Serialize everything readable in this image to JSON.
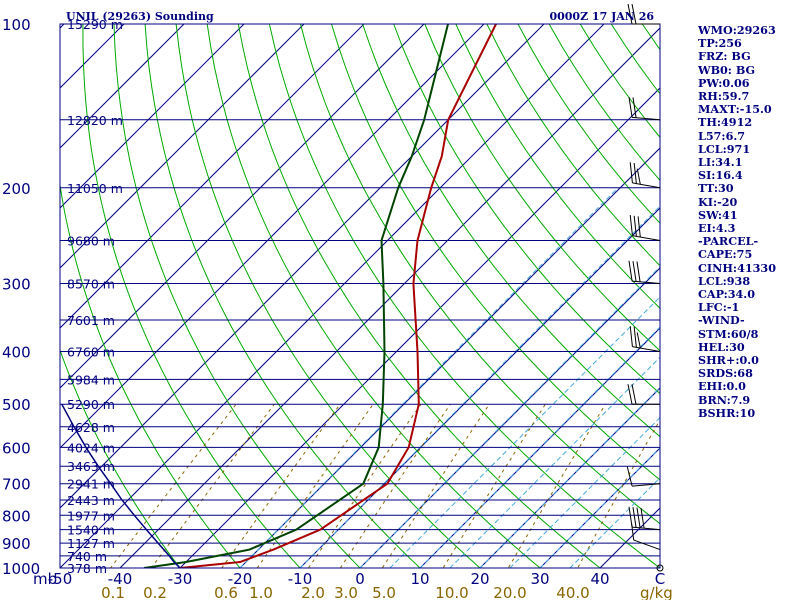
{
  "header": {
    "left_title": "UNIL (29263) Sounding",
    "right_title": "0000Z 17 JAN 26"
  },
  "chart_data": {
    "type": "line",
    "subtype": "skew-T log-P",
    "y_axis": {
      "label": "mb",
      "scale": "log",
      "ylim": [
        1000,
        100
      ],
      "ticks": [
        100,
        200,
        300,
        400,
        500,
        600,
        700,
        800,
        900,
        1000
      ]
    },
    "x_axis": {
      "label": "C",
      "xlim": [
        -50,
        50
      ],
      "ticks": [
        -50,
        -40,
        -30,
        -20,
        -10,
        0,
        10,
        20,
        30,
        40
      ]
    },
    "mixing_ratio_axis": {
      "label": "g/kg",
      "ticks": [
        "0.1",
        "0.2",
        "0.6",
        "1.0",
        "2.0",
        "3.0",
        "5.0",
        "10.0",
        "20.0",
        "40.0"
      ]
    },
    "height_labels": [
      {
        "p": 100,
        "label": "15290 m"
      },
      {
        "p": 150,
        "label": "12820 m"
      },
      {
        "p": 200,
        "label": "11050 m"
      },
      {
        "p": 250,
        "label": "9680 m"
      },
      {
        "p": 300,
        "label": "8570 m"
      },
      {
        "p": 350,
        "label": "7601 m"
      },
      {
        "p": 400,
        "label": "6760 m"
      },
      {
        "p": 450,
        "label": "5984 m"
      },
      {
        "p": 500,
        "label": "5290 m"
      },
      {
        "p": 550,
        "label": "4628 m"
      },
      {
        "p": 600,
        "label": "4024 m"
      },
      {
        "p": 650,
        "label": "3463 m"
      },
      {
        "p": 700,
        "label": "2941 m"
      },
      {
        "p": 750,
        "label": "2443 m"
      },
      {
        "p": 800,
        "label": "1977 m"
      },
      {
        "p": 850,
        "label": "1540 m"
      },
      {
        "p": 900,
        "label": "1127 m"
      },
      {
        "p": 950,
        "label": "740 m"
      },
      {
        "p": 1000,
        "label": "378 m"
      }
    ],
    "series": [
      {
        "name": "Temperature",
        "color": "#aa0000",
        "points": [
          {
            "p": 1000,
            "t": -30
          },
          {
            "p": 975,
            "t": -21
          },
          {
            "p": 925,
            "t": -17.5
          },
          {
            "p": 850,
            "t": -13
          },
          {
            "p": 700,
            "t": -9.5
          },
          {
            "p": 600,
            "t": -12
          },
          {
            "p": 500,
            "t": -17.5
          },
          {
            "p": 400,
            "t": -26.5
          },
          {
            "p": 300,
            "t": -38.5
          },
          {
            "p": 250,
            "t": -45
          },
          {
            "p": 200,
            "t": -51.5
          },
          {
            "p": 175,
            "t": -55
          },
          {
            "p": 150,
            "t": -60
          },
          {
            "p": 100,
            "t": -68
          }
        ]
      },
      {
        "name": "Dewpoint",
        "color": "#004400",
        "points": [
          {
            "p": 1000,
            "t": -36
          },
          {
            "p": 975,
            "t": -30
          },
          {
            "p": 925,
            "t": -21.5
          },
          {
            "p": 850,
            "t": -17
          },
          {
            "p": 700,
            "t": -13.5
          },
          {
            "p": 600,
            "t": -17
          },
          {
            "p": 500,
            "t": -23.5
          },
          {
            "p": 400,
            "t": -32
          },
          {
            "p": 300,
            "t": -43.5
          },
          {
            "p": 250,
            "t": -51
          },
          {
            "p": 200,
            "t": -57
          },
          {
            "p": 175,
            "t": -60
          },
          {
            "p": 150,
            "t": -64
          },
          {
            "p": 100,
            "t": -76
          }
        ]
      },
      {
        "name": "Parcel",
        "color": "#000080",
        "points": [
          {
            "p": 1000,
            "t": -30
          },
          {
            "p": 975,
            "t": -32
          },
          {
            "p": 950,
            "t": -33.8
          },
          {
            "p": 900,
            "t": -37.8
          },
          {
            "p": 850,
            "t": -42
          },
          {
            "p": 800,
            "t": -46.4
          },
          {
            "p": 750,
            "t": -51
          },
          {
            "p": 700,
            "t": -55.6
          },
          {
            "p": 650,
            "t": -60.6
          },
          {
            "p": 600,
            "t": -65.8
          },
          {
            "p": 550,
            "t": -71.2
          },
          {
            "p": 500,
            "t": -77
          }
        ]
      }
    ],
    "winds": [
      {
        "p": 100,
        "dir": 270,
        "spd": 20
      },
      {
        "p": 150,
        "dir": 275,
        "spd": 20
      },
      {
        "p": 200,
        "dir": 280,
        "spd": 25
      },
      {
        "p": 250,
        "dir": 280,
        "spd": 30
      },
      {
        "p": 300,
        "dir": 275,
        "spd": 30
      },
      {
        "p": 400,
        "dir": 280,
        "spd": 25
      },
      {
        "p": 500,
        "dir": 270,
        "spd": 20
      },
      {
        "p": 700,
        "dir": 265,
        "spd": 10
      },
      {
        "p": 850,
        "dir": 275,
        "spd": 40
      },
      {
        "p": 925,
        "dir": 290,
        "spd": 5
      },
      {
        "p": 1000,
        "dir": 0,
        "spd": 0
      }
    ],
    "colors": {
      "isobar": "#000080",
      "isotherm": "#000080",
      "dry_adiabat": "#00aa00",
      "moist_adiabat": "#44aadd",
      "mixing_ratio": "#886600",
      "axis_text": "#000080",
      "mixing_text": "#886600"
    }
  },
  "indices": [
    "WMO:29263",
    "TP:256",
    "FRZ: BG",
    "WB0: BG",
    "PW:0.06",
    "RH:59.7",
    "MAXT:-15.0",
    "TH:4912",
    "L57:6.7",
    "LCL:971",
    "LI:34.1",
    "SI:16.4",
    "TT:30",
    "KI:-20",
    "SW:41",
    "EI:4.3",
    "-PARCEL-",
    "CAPE:75",
    "CINH:41330",
    "LCL:938",
    "CAP:34.0",
    "LFC:-1",
    "-WIND-",
    "STM:60/8",
    "HEL:30",
    "SHR+:0.0",
    "SRDS:68",
    "EHI:0.0",
    "BRN:7.9",
    "BSHR:10"
  ]
}
